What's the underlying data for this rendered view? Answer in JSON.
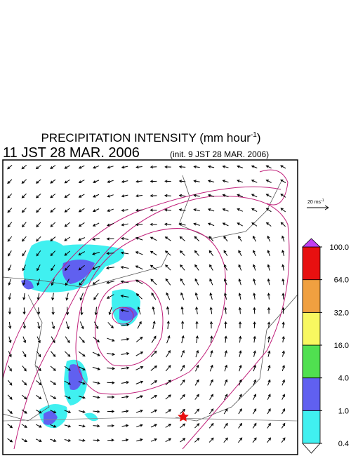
{
  "header": {
    "title": "PRECIPITATION INTENSITY (mm hour",
    "title_exponent": "-1",
    "title_close": ")",
    "time": "11 JST 28 MAR. 2006",
    "init": "(init. 9 JST 28 MAR. 2006)"
  },
  "vector_scale": {
    "label": "20 ms",
    "exponent": "-1"
  },
  "colorbar": {
    "levels": [
      {
        "value": 0.4,
        "label": "0.4"
      },
      {
        "value": 1,
        "label": "1.0"
      },
      {
        "value": 4,
        "label": "4.0"
      },
      {
        "value": 16,
        "label": "16.0"
      },
      {
        "value": 32,
        "label": "32.0"
      },
      {
        "value": 64,
        "label": "64.0"
      },
      {
        "value": 100,
        "label": "100.0"
      }
    ],
    "colors": [
      "#40f0f0",
      "#6060f0",
      "#50e050",
      "#f8f860",
      "#f0a040",
      "#e81010"
    ],
    "under_color": "#ffffff",
    "over_color": "#c040f0"
  }
}
